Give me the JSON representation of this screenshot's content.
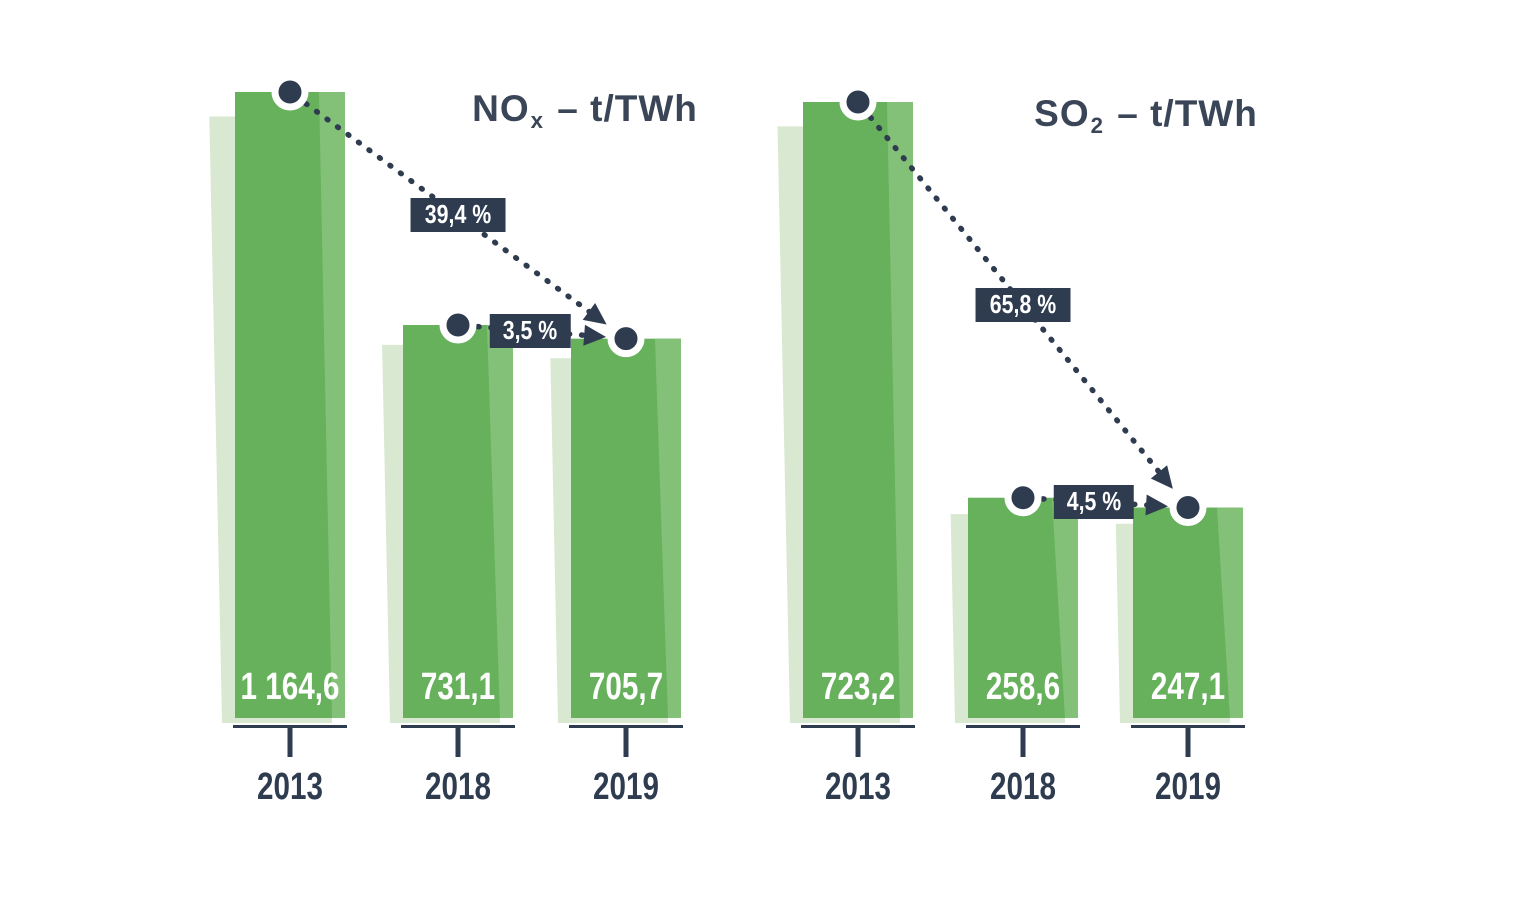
{
  "colors": {
    "background": "#ffffff",
    "bar_main": "#67b15c",
    "bar_highlight": "#84c178",
    "bar_shadow": "#d9e8d1",
    "ink": "#2f3c50",
    "title_ink": "#3a4658",
    "label_text": "#ffffff"
  },
  "chart_data": [
    {
      "type": "bar",
      "id": "nox",
      "title": "NOx – t/TWh",
      "title_parts": {
        "pre": "NO",
        "sub": "x",
        "post": " – t/TWh"
      },
      "categories": [
        "2013",
        "2018",
        "2019"
      ],
      "values": [
        1164.6,
        731.1,
        705.7
      ],
      "value_labels": [
        "1 164,6",
        "731,1",
        "705,7"
      ],
      "ylim": [
        0,
        1164.6
      ],
      "legend": "none",
      "grid": "off",
      "annotations": [
        {
          "from_index": 0,
          "to_index": 2,
          "label": "39,4 %"
        },
        {
          "from_index": 1,
          "to_index": 2,
          "label": "3,5 %"
        }
      ]
    },
    {
      "type": "bar",
      "id": "so2",
      "title": "SO2 – t/TWh",
      "title_parts": {
        "pre": "SO",
        "sub": "2",
        "post": " – t/TWh"
      },
      "categories": [
        "2013",
        "2018",
        "2019"
      ],
      "values": [
        723.2,
        258.6,
        247.1
      ],
      "value_labels": [
        "723,2",
        "258,6",
        "247,1"
      ],
      "ylim": [
        0,
        723.2
      ],
      "legend": "none",
      "grid": "off",
      "annotations": [
        {
          "from_index": 0,
          "to_index": 2,
          "label": "65,8 %"
        },
        {
          "from_index": 1,
          "to_index": 2,
          "label": "4,5 %"
        }
      ]
    }
  ]
}
